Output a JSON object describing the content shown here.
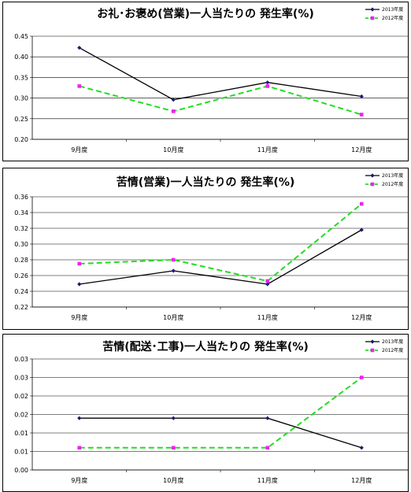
{
  "colors": {
    "series_2013": "#000000",
    "series_2012": "#22DD22",
    "marker_2013": "#1A1A6E",
    "marker_2012": "#EE22EE",
    "grid": "#000000"
  },
  "chart_data": [
    {
      "type": "line",
      "title": "お礼･お褒め(営業)一人当たりの 発生率(%)",
      "categories": [
        "9月度",
        "10月度",
        "11月度",
        "12月度"
      ],
      "y_tick_labels": [
        "0.20",
        "0.25",
        "0.30",
        "0.35",
        "0.40",
        "0.45"
      ],
      "ylim": [
        0.2,
        0.45
      ],
      "grid": true,
      "legend_position": "top-right",
      "series": [
        {
          "name": "2013年度",
          "values": [
            0.422,
            0.296,
            0.338,
            0.304
          ],
          "style": "solid"
        },
        {
          "name": "2012年度",
          "values": [
            0.329,
            0.268,
            0.329,
            0.26
          ],
          "style": "dashed"
        }
      ]
    },
    {
      "type": "line",
      "title": "苦情(営業)一人当たりの 発生率(%)",
      "categories": [
        "9月度",
        "10月度",
        "11月度",
        "12月度"
      ],
      "y_tick_labels": [
        "0.22",
        "0.24",
        "0.26",
        "0.28",
        "0.30",
        "0.32",
        "0.34",
        "0.36"
      ],
      "ylim": [
        0.22,
        0.36
      ],
      "grid": true,
      "legend_position": "top-right",
      "series": [
        {
          "name": "2013年度",
          "values": [
            0.249,
            0.266,
            0.249,
            0.318
          ],
          "style": "solid"
        },
        {
          "name": "2012年度",
          "values": [
            0.275,
            0.28,
            0.253,
            0.351
          ],
          "style": "dashed"
        }
      ]
    },
    {
      "type": "line",
      "title": "苦情(配送･工事)一人当たりの 発生率(%)",
      "categories": [
        "9月度",
        "10月度",
        "11月度",
        "12月度"
      ],
      "y_tick_labels": [
        "0.00",
        "0.01",
        "0.01",
        "0.02",
        "0.02",
        "0.03",
        "0.03"
      ],
      "ylim": [
        0.0,
        0.03
      ],
      "grid": true,
      "legend_position": "top-right",
      "series": [
        {
          "name": "2013年度",
          "values": [
            0.014,
            0.014,
            0.014,
            0.006
          ],
          "style": "solid"
        },
        {
          "name": "2012年度",
          "values": [
            0.006,
            0.006,
            0.006,
            0.025
          ],
          "style": "dashed"
        }
      ]
    }
  ]
}
